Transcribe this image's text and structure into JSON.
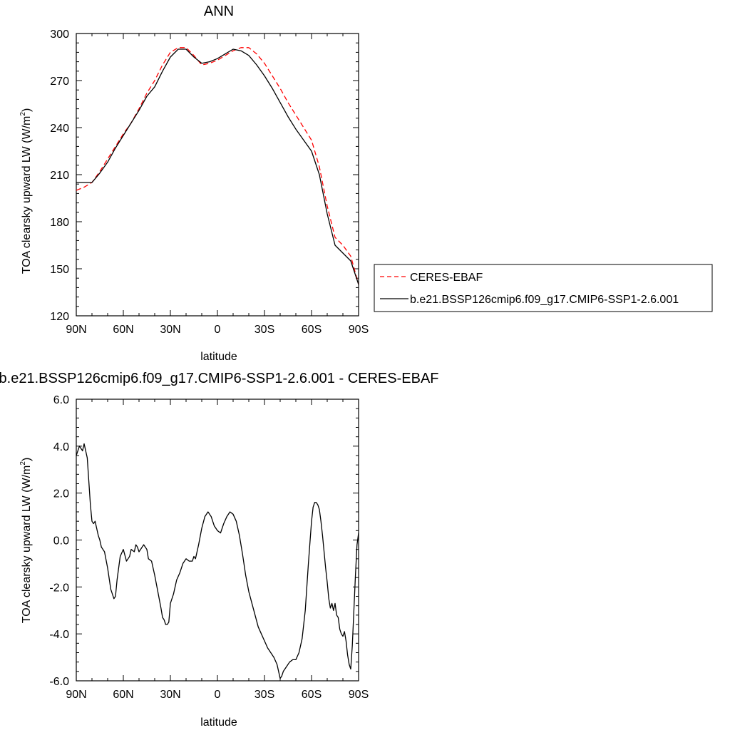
{
  "chart_data": [
    {
      "type": "line",
      "title": "ANN",
      "xlabel": "latitude",
      "ylabel": "TOA clearsky upward LW (W/m",
      "ylabel_sup": "2",
      "ylabel_end": ")",
      "xlim": [
        90,
        -90
      ],
      "ylim": [
        120,
        300
      ],
      "xticks": [
        {
          "value": 90,
          "label": "90N"
        },
        {
          "value": 60,
          "label": "60N"
        },
        {
          "value": 30,
          "label": "30N"
        },
        {
          "value": 0,
          "label": "0"
        },
        {
          "value": -30,
          "label": "30S"
        },
        {
          "value": -60,
          "label": "60S"
        },
        {
          "value": -90,
          "label": "90S"
        }
      ],
      "yticks": [
        {
          "value": 120,
          "label": "120"
        },
        {
          "value": 150,
          "label": "150"
        },
        {
          "value": 180,
          "label": "180"
        },
        {
          "value": 210,
          "label": "210"
        },
        {
          "value": 240,
          "label": "240"
        },
        {
          "value": 270,
          "label": "270"
        },
        {
          "value": 300,
          "label": "300"
        }
      ],
      "legend_position": "right",
      "series": [
        {
          "name": "CERES-EBAF",
          "color": "#ff0000",
          "dash": true,
          "x": [
            90,
            85,
            80,
            75,
            70,
            65,
            60,
            55,
            50,
            45,
            40,
            35,
            30,
            25,
            20,
            15,
            10,
            5,
            0,
            -5,
            -10,
            -15,
            -20,
            -25,
            -30,
            -35,
            -40,
            -45,
            -50,
            -55,
            -60,
            -65,
            -70,
            -75,
            -80,
            -85,
            -90
          ],
          "values": [
            200,
            202,
            205,
            212,
            220,
            228,
            236,
            243,
            252,
            262,
            270,
            280,
            288,
            291,
            291,
            286,
            280,
            281,
            283,
            286,
            289,
            291,
            291,
            287,
            281,
            273,
            265,
            256,
            248,
            240,
            232,
            215,
            190,
            170,
            165,
            158,
            140
          ]
        },
        {
          "name": "b.e21.BSSP126cmip6.f09_g17.CMIP6-SSP1-2.6.001",
          "color": "#000000",
          "dash": false,
          "x": [
            90,
            85,
            80,
            75,
            70,
            65,
            60,
            55,
            50,
            45,
            40,
            35,
            30,
            25,
            20,
            15,
            10,
            5,
            0,
            -5,
            -10,
            -15,
            -20,
            -25,
            -30,
            -35,
            -40,
            -45,
            -50,
            -55,
            -60,
            -65,
            -70,
            -75,
            -80,
            -85,
            -90
          ],
          "values": [
            205,
            205,
            205,
            211,
            218,
            227,
            235,
            243,
            251,
            260,
            266,
            276,
            285,
            290,
            290,
            285,
            281,
            282,
            284,
            287,
            290,
            289,
            286,
            280,
            273,
            265,
            256,
            247,
            239,
            232,
            225,
            210,
            185,
            165,
            160,
            155,
            140
          ]
        }
      ]
    },
    {
      "type": "line",
      "title": "b.e21.BSSP126cmip6.f09_g17.CMIP6-SSP1-2.6.001 - CERES-EBAF",
      "xlabel": "latitude",
      "ylabel": "TOA clearsky upward LW (W/m",
      "ylabel_sup": "2",
      "ylabel_end": ")",
      "xlim": [
        90,
        -90
      ],
      "ylim": [
        -6,
        6
      ],
      "xticks": [
        {
          "value": 90,
          "label": "90N"
        },
        {
          "value": 60,
          "label": "60N"
        },
        {
          "value": 30,
          "label": "30N"
        },
        {
          "value": 0,
          "label": "0"
        },
        {
          "value": -30,
          "label": "30S"
        },
        {
          "value": -60,
          "label": "60S"
        },
        {
          "value": -90,
          "label": "90S"
        }
      ],
      "yticks": [
        {
          "value": -6,
          "label": "-6.0"
        },
        {
          "value": -4,
          "label": "-4.0"
        },
        {
          "value": -2,
          "label": "-2.0"
        },
        {
          "value": 0,
          "label": "0.0"
        },
        {
          "value": 2,
          "label": "2.0"
        },
        {
          "value": 4,
          "label": "4.0"
        },
        {
          "value": 6,
          "label": "6.0"
        }
      ],
      "series": [
        {
          "color": "#000000",
          "dash": false,
          "x": [
            90,
            88,
            86,
            85,
            83,
            82,
            81,
            80,
            79,
            78,
            77,
            76,
            75,
            74,
            72,
            70,
            68,
            66,
            65,
            64,
            62,
            60,
            58,
            57,
            56,
            55,
            53,
            52,
            51,
            50,
            48,
            47,
            45,
            44,
            42,
            40,
            38,
            36,
            35,
            34,
            33,
            32,
            31,
            30,
            28,
            26,
            24,
            22,
            20,
            18,
            16,
            15,
            14,
            12,
            10,
            8,
            6,
            5,
            4,
            2,
            0,
            -2,
            -4,
            -6,
            -8,
            -10,
            -12,
            -14,
            -16,
            -18,
            -20,
            -22,
            -24,
            -26,
            -28,
            -30,
            -32,
            -34,
            -36,
            -38,
            -40,
            -41,
            -42,
            -44,
            -46,
            -48,
            -50,
            -52,
            -54,
            -56,
            -58,
            -60,
            -61,
            -62,
            -63,
            -64,
            -65,
            -66,
            -67,
            -68,
            -69,
            -70,
            -71,
            -72,
            -73,
            -74,
            -75,
            -76,
            -77,
            -78,
            -79,
            -80,
            -81,
            -82,
            -83,
            -84,
            -85,
            -86,
            -87,
            -88,
            -89,
            -90
          ],
          "values": [
            3.6,
            4.0,
            3.8,
            4.1,
            3.5,
            2.5,
            1.5,
            0.8,
            0.7,
            0.8,
            0.5,
            0.2,
            0.0,
            -0.3,
            -0.5,
            -1.2,
            -2.1,
            -2.5,
            -2.4,
            -1.7,
            -0.7,
            -0.4,
            -0.9,
            -0.8,
            -0.7,
            -0.4,
            -0.5,
            -0.2,
            -0.3,
            -0.5,
            -0.3,
            -0.2,
            -0.4,
            -0.8,
            -0.9,
            -1.5,
            -2.2,
            -2.9,
            -3.3,
            -3.4,
            -3.6,
            -3.6,
            -3.5,
            -2.7,
            -2.3,
            -1.7,
            -1.4,
            -1.0,
            -0.8,
            -0.9,
            -0.9,
            -0.7,
            -0.8,
            -0.2,
            0.5,
            1.0,
            1.2,
            1.1,
            1.0,
            0.6,
            0.4,
            0.3,
            0.7,
            1.0,
            1.2,
            1.1,
            0.8,
            0.2,
            -0.6,
            -1.5,
            -2.2,
            -2.7,
            -3.2,
            -3.7,
            -4.0,
            -4.3,
            -4.6,
            -4.8,
            -5.0,
            -5.3,
            -5.9,
            -5.8,
            -5.6,
            -5.4,
            -5.2,
            -5.1,
            -5.1,
            -4.8,
            -4.2,
            -3.0,
            -1.0,
            0.8,
            1.4,
            1.6,
            1.6,
            1.5,
            1.3,
            0.8,
            0.2,
            -0.5,
            -1.2,
            -1.8,
            -2.5,
            -2.9,
            -2.7,
            -3.0,
            -2.7,
            -3.2,
            -3.3,
            -3.8,
            -4.0,
            -4.1,
            -3.9,
            -4.3,
            -4.9,
            -5.3,
            -5.5,
            -4.5,
            -3.0,
            -1.5,
            -0.2,
            0.3
          ]
        }
      ]
    }
  ],
  "legend": {
    "items": [
      {
        "label": "CERES-EBAF",
        "color": "#ff0000",
        "dash": true
      },
      {
        "label": "b.e21.BSSP126cmip6.f09_g17.CMIP6-SSP1-2.6.001",
        "color": "#000000",
        "dash": false
      }
    ]
  }
}
